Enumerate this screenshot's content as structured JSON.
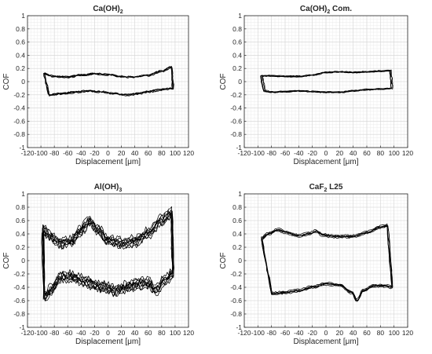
{
  "chart_data": [
    {
      "type": "line",
      "title": "Ca(OH)",
      "title_subscript": "2",
      "title_suffix": "",
      "xlabel": "Displacement [μm]",
      "ylabel": "COF",
      "xlim": [
        -120,
        120
      ],
      "ylim": [
        -1,
        1
      ],
      "xticks": [
        -120,
        -100,
        -80,
        -60,
        -40,
        -20,
        0,
        20,
        40,
        60,
        80,
        100,
        120
      ],
      "yticks": [
        -1,
        -0.8,
        -0.6,
        -0.4,
        -0.2,
        0,
        0.2,
        0.4,
        0.6,
        0.8,
        1
      ],
      "grid": true,
      "color": "#000000",
      "loop": {
        "top": [
          [
            -95,
            0.12
          ],
          [
            -80,
            0.08
          ],
          [
            -60,
            0.07
          ],
          [
            -40,
            0.1
          ],
          [
            -20,
            0.12
          ],
          [
            0,
            0.11
          ],
          [
            20,
            0.08
          ],
          [
            40,
            0.07
          ],
          [
            60,
            0.1
          ],
          [
            80,
            0.16
          ],
          [
            95,
            0.22
          ]
        ],
        "bottom": [
          [
            97,
            -0.1
          ],
          [
            80,
            -0.12
          ],
          [
            60,
            -0.15
          ],
          [
            45,
            -0.18
          ],
          [
            30,
            -0.2
          ],
          [
            10,
            -0.18
          ],
          [
            -10,
            -0.15
          ],
          [
            -30,
            -0.14
          ],
          [
            -50,
            -0.16
          ],
          [
            -70,
            -0.18
          ],
          [
            -88,
            -0.2
          ]
        ],
        "cycles": 5,
        "noise": 0.012,
        "spread": 0.012
      }
    },
    {
      "type": "line",
      "title": "Ca(OH)",
      "title_subscript": "2",
      "title_suffix": " Com.",
      "xlabel": "Displacement [μm]",
      "ylabel": "COF",
      "xlim": [
        -120,
        120
      ],
      "ylim": [
        -1,
        1
      ],
      "xticks": [
        -120,
        -100,
        -80,
        -60,
        -40,
        -20,
        0,
        20,
        40,
        60,
        80,
        100,
        120
      ],
      "yticks": [
        -1,
        -0.8,
        -0.6,
        -0.4,
        -0.2,
        0,
        0.2,
        0.4,
        0.6,
        0.8,
        1
      ],
      "grid": true,
      "color": "#000000",
      "loop": {
        "top": [
          [
            -95,
            0.09
          ],
          [
            -80,
            0.09
          ],
          [
            -60,
            0.08
          ],
          [
            -40,
            0.08
          ],
          [
            -20,
            0.1
          ],
          [
            0,
            0.14
          ],
          [
            20,
            0.15
          ],
          [
            40,
            0.14
          ],
          [
            60,
            0.15
          ],
          [
            80,
            0.16
          ],
          [
            95,
            0.17
          ]
        ],
        "bottom": [
          [
            97,
            -0.1
          ],
          [
            80,
            -0.11
          ],
          [
            60,
            -0.12
          ],
          [
            40,
            -0.14
          ],
          [
            20,
            -0.16
          ],
          [
            0,
            -0.16
          ],
          [
            -20,
            -0.15
          ],
          [
            -40,
            -0.14
          ],
          [
            -60,
            -0.15
          ],
          [
            -80,
            -0.16
          ],
          [
            -90,
            -0.14
          ]
        ],
        "cycles": 5,
        "noise": 0.006,
        "spread": 0.008
      }
    },
    {
      "type": "line",
      "title": "Al(OH)",
      "title_subscript": "3",
      "title_suffix": "",
      "xlabel": "Displacement [μm]",
      "ylabel": "COF",
      "xlim": [
        -120,
        120
      ],
      "ylim": [
        -1,
        1
      ],
      "xticks": [
        -120,
        -100,
        -80,
        -60,
        -40,
        -20,
        0,
        20,
        40,
        60,
        80,
        100,
        120
      ],
      "yticks": [
        -1,
        -0.8,
        -0.6,
        -0.4,
        -0.2,
        0,
        0.2,
        0.4,
        0.6,
        0.8,
        1
      ],
      "grid": true,
      "color": "#000000",
      "loop": {
        "top": [
          [
            -97,
            0.45
          ],
          [
            -85,
            0.35
          ],
          [
            -70,
            0.25
          ],
          [
            -55,
            0.28
          ],
          [
            -40,
            0.45
          ],
          [
            -28,
            0.58
          ],
          [
            -15,
            0.45
          ],
          [
            0,
            0.3
          ],
          [
            20,
            0.25
          ],
          [
            40,
            0.28
          ],
          [
            60,
            0.4
          ],
          [
            80,
            0.6
          ],
          [
            95,
            0.7
          ]
        ],
        "bottom": [
          [
            97,
            -0.2
          ],
          [
            85,
            -0.3
          ],
          [
            72,
            -0.45
          ],
          [
            60,
            -0.35
          ],
          [
            45,
            -0.35
          ],
          [
            30,
            -0.4
          ],
          [
            10,
            -0.45
          ],
          [
            -10,
            -0.4
          ],
          [
            -25,
            -0.35
          ],
          [
            -40,
            -0.3
          ],
          [
            -55,
            -0.25
          ],
          [
            -70,
            -0.25
          ],
          [
            -85,
            -0.45
          ],
          [
            -95,
            -0.55
          ]
        ],
        "cycles": 9,
        "noise": 0.045,
        "spread": 0.09
      }
    },
    {
      "type": "line",
      "title": "CaF",
      "title_subscript": "2",
      "title_suffix": " L25",
      "xlabel": "Displacement [μm]",
      "ylabel": "COF",
      "xlim": [
        -120,
        120
      ],
      "ylim": [
        -1,
        1
      ],
      "xticks": [
        -120,
        -100,
        -80,
        -60,
        -40,
        -20,
        0,
        20,
        40,
        60,
        80,
        100,
        120
      ],
      "yticks": [
        -1,
        -0.8,
        -0.6,
        -0.4,
        -0.2,
        0,
        0.2,
        0.4,
        0.6,
        0.8,
        1
      ],
      "grid": true,
      "color": "#000000",
      "loop": {
        "top": [
          [
            -95,
            0.33
          ],
          [
            -85,
            0.4
          ],
          [
            -70,
            0.46
          ],
          [
            -60,
            0.42
          ],
          [
            -40,
            0.37
          ],
          [
            -25,
            0.4
          ],
          [
            -15,
            0.44
          ],
          [
            -5,
            0.38
          ],
          [
            10,
            0.36
          ],
          [
            40,
            0.36
          ],
          [
            60,
            0.42
          ],
          [
            80,
            0.5
          ],
          [
            90,
            0.52
          ]
        ],
        "bottom": [
          [
            97,
            -0.4
          ],
          [
            85,
            -0.38
          ],
          [
            70,
            -0.38
          ],
          [
            55,
            -0.45
          ],
          [
            45,
            -0.6
          ],
          [
            38,
            -0.48
          ],
          [
            20,
            -0.37
          ],
          [
            0,
            -0.35
          ],
          [
            -20,
            -0.4
          ],
          [
            -40,
            -0.45
          ],
          [
            -60,
            -0.48
          ],
          [
            -80,
            -0.5
          ]
        ],
        "cycles": 6,
        "noise": 0.01,
        "spread": 0.025
      }
    }
  ]
}
